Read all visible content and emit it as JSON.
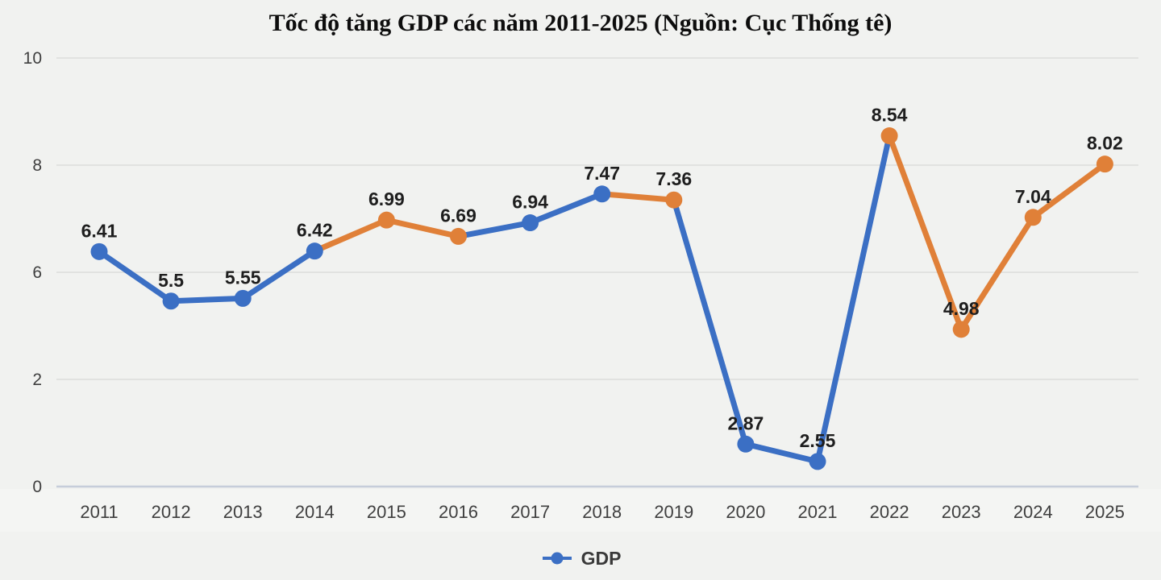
{
  "title": "Tốc độ tăng GDP các năm 2011-2025 (Nguồn: Cục Thống tê)",
  "chart_data": {
    "type": "line",
    "title": "Tốc độ tăng GDP các năm 2011-2025 (Nguồn: Cục Thống tê)",
    "categories": [
      "2011",
      "2012",
      "2013",
      "2014",
      "2015",
      "2016",
      "2017",
      "2018",
      "2019",
      "2020",
      "2021",
      "2022",
      "2023",
      "2024",
      "2025"
    ],
    "series": [
      {
        "name": "GDP",
        "values": [
          6.41,
          5.5,
          5.55,
          6.42,
          6.99,
          6.69,
          6.94,
          7.47,
          7.36,
          2.87,
          2.55,
          8.54,
          4.98,
          7.04,
          8.02
        ],
        "value_labels": [
          "6.41",
          "5.5",
          "5.55",
          "6.42",
          "6.99",
          "6.69",
          "6.94",
          "7.47",
          "7.36",
          "2.87",
          "2.55",
          "8.54",
          "4.98",
          "7.04",
          "8.02"
        ],
        "point_colors": [
          "blue",
          "blue",
          "blue",
          "blue",
          "orange",
          "orange",
          "blue",
          "blue",
          "orange",
          "blue",
          "blue",
          "orange",
          "orange",
          "orange",
          "orange"
        ],
        "segment_colors": [
          "blue",
          "blue",
          "blue",
          "orange",
          "orange",
          "blue",
          "blue",
          "orange",
          "blue",
          "blue",
          "blue",
          "orange",
          "orange",
          "orange"
        ]
      }
    ],
    "y_ticks": [
      {
        "label": "10",
        "value": 10
      },
      {
        "label": "8",
        "value": 8
      },
      {
        "label": "6",
        "value": 6
      },
      {
        "label": "2",
        "value": 2
      },
      {
        "label": "0",
        "value": 0
      }
    ],
    "ylim": [
      0,
      10
    ],
    "grid": true,
    "legend": {
      "label": "GDP",
      "position": "bottom-center"
    },
    "colors": {
      "blue": "#3b6fc4",
      "orange": "#e08038",
      "gridline": "#dcdddb",
      "axis_line": "#c6cdda",
      "tick_text": "#3f3f3f",
      "value_label_text": "#1e1e1e",
      "background": "#f1f2f0"
    }
  }
}
